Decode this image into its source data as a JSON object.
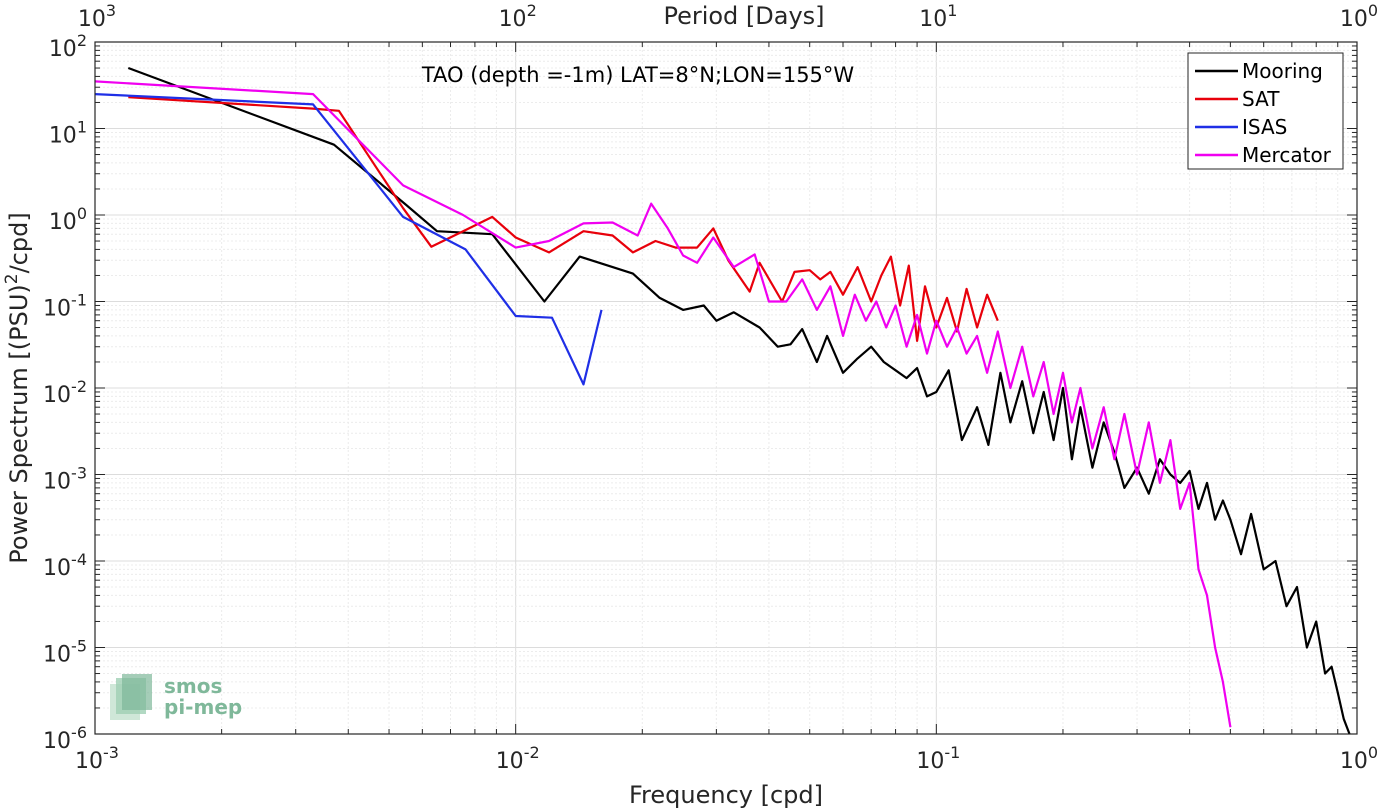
{
  "chart_data": {
    "type": "line",
    "title": "TAO (depth =-1m) LAT=8°N;LON=155°W",
    "xlabel": "Frequency [cpd]",
    "ylabel": "Power Spectrum [(PSU)^2/cpd]",
    "top_xlabel": "Period [Days]",
    "xscale": "log",
    "yscale": "log",
    "xlim": [
      0.001,
      1
    ],
    "ylim": [
      1e-06,
      100
    ],
    "grid": true,
    "legend_position": "top-right",
    "x_ticks": [
      {
        "base": "10",
        "exp": "-3",
        "value": 0.001
      },
      {
        "base": "10",
        "exp": "-2",
        "value": 0.01
      },
      {
        "base": "10",
        "exp": "-1",
        "value": 0.1
      },
      {
        "base": "10",
        "exp": "0",
        "value": 1
      }
    ],
    "top_ticks": [
      {
        "base": "10",
        "exp": "3",
        "value": 0.001
      },
      {
        "base": "10",
        "exp": "2",
        "value": 0.01
      },
      {
        "base": "10",
        "exp": "1",
        "value": 0.1
      },
      {
        "base": "10",
        "exp": "0",
        "value": 1
      }
    ],
    "y_ticks": [
      {
        "base": "10",
        "exp": "2",
        "value": 100
      },
      {
        "base": "10",
        "exp": "1",
        "value": 10
      },
      {
        "base": "10",
        "exp": "0",
        "value": 1
      },
      {
        "base": "10",
        "exp": "-1",
        "value": 0.1
      },
      {
        "base": "10",
        "exp": "-2",
        "value": 0.01
      },
      {
        "base": "10",
        "exp": "-3",
        "value": 0.001
      },
      {
        "base": "10",
        "exp": "-4",
        "value": 0.0001
      },
      {
        "base": "10",
        "exp": "-5",
        "value": 1e-05
      },
      {
        "base": "10",
        "exp": "-6",
        "value": 1e-06
      }
    ],
    "series": [
      {
        "name": "Mooring",
        "color": "#000000",
        "x": [
          0.0012,
          0.0037,
          0.0055,
          0.0065,
          0.0088,
          0.0117,
          0.0142,
          0.017,
          0.019,
          0.022,
          0.025,
          0.028,
          0.03,
          0.033,
          0.038,
          0.042,
          0.045,
          0.048,
          0.052,
          0.055,
          0.06,
          0.065,
          0.07,
          0.075,
          0.08,
          0.085,
          0.09,
          0.095,
          0.1,
          0.107,
          0.115,
          0.125,
          0.133,
          0.142,
          0.15,
          0.16,
          0.17,
          0.18,
          0.19,
          0.2,
          0.21,
          0.22,
          0.235,
          0.25,
          0.265,
          0.28,
          0.3,
          0.32,
          0.34,
          0.36,
          0.38,
          0.4,
          0.42,
          0.44,
          0.46,
          0.48,
          0.5,
          0.53,
          0.56,
          0.6,
          0.64,
          0.68,
          0.72,
          0.76,
          0.8,
          0.84,
          0.87,
          0.9,
          0.93,
          0.96
        ],
        "y": [
          50,
          6.5,
          1.3,
          0.65,
          0.6,
          0.1,
          0.33,
          0.25,
          0.21,
          0.11,
          0.08,
          0.09,
          0.06,
          0.075,
          0.05,
          0.03,
          0.032,
          0.048,
          0.02,
          0.04,
          0.015,
          0.022,
          0.03,
          0.02,
          0.016,
          0.013,
          0.017,
          0.008,
          0.009,
          0.016,
          0.0025,
          0.006,
          0.0022,
          0.015,
          0.004,
          0.012,
          0.003,
          0.009,
          0.0025,
          0.01,
          0.0015,
          0.006,
          0.0012,
          0.004,
          0.0018,
          0.0007,
          0.0012,
          0.0006,
          0.0015,
          0.001,
          0.0008,
          0.0011,
          0.0004,
          0.0008,
          0.0003,
          0.0005,
          0.0003,
          0.00012,
          0.00035,
          8e-05,
          0.0001,
          3e-05,
          5e-05,
          1e-05,
          2e-05,
          5e-06,
          6e-06,
          3e-06,
          1.5e-06,
          1e-06
        ]
      },
      {
        "name": "SAT",
        "color": "#e8000b",
        "x": [
          0.0012,
          0.0033,
          0.0038,
          0.0054,
          0.0063,
          0.0075,
          0.0088,
          0.01,
          0.012,
          0.0145,
          0.017,
          0.019,
          0.0215,
          0.024,
          0.027,
          0.0295,
          0.032,
          0.036,
          0.038,
          0.043,
          0.046,
          0.05,
          0.053,
          0.056,
          0.06,
          0.065,
          0.07,
          0.074,
          0.078,
          0.082,
          0.086,
          0.09,
          0.094,
          0.1,
          0.106,
          0.112,
          0.118,
          0.125,
          0.132,
          0.14
        ],
        "y": [
          23,
          17,
          16,
          1.2,
          0.43,
          0.65,
          0.95,
          0.55,
          0.37,
          0.65,
          0.58,
          0.37,
          0.5,
          0.42,
          0.42,
          0.7,
          0.3,
          0.13,
          0.28,
          0.1,
          0.22,
          0.23,
          0.18,
          0.22,
          0.12,
          0.25,
          0.1,
          0.2,
          0.33,
          0.09,
          0.26,
          0.035,
          0.15,
          0.05,
          0.11,
          0.045,
          0.14,
          0.05,
          0.12,
          0.06
        ]
      },
      {
        "name": "ISAS",
        "color": "#1f2fe6",
        "x": [
          0.001,
          0.0033,
          0.0054,
          0.0076,
          0.01,
          0.0122,
          0.0145,
          0.016
        ],
        "y": [
          25,
          19,
          0.95,
          0.4,
          0.068,
          0.065,
          0.011,
          0.08
        ]
      },
      {
        "name": "Mercator",
        "color": "#f000f0",
        "x": [
          0.001,
          0.0033,
          0.0054,
          0.0075,
          0.01,
          0.012,
          0.0145,
          0.017,
          0.0195,
          0.021,
          0.023,
          0.025,
          0.027,
          0.0295,
          0.033,
          0.037,
          0.04,
          0.044,
          0.048,
          0.052,
          0.056,
          0.06,
          0.064,
          0.068,
          0.072,
          0.076,
          0.08,
          0.085,
          0.09,
          0.095,
          0.1,
          0.106,
          0.112,
          0.118,
          0.125,
          0.132,
          0.14,
          0.15,
          0.16,
          0.17,
          0.18,
          0.19,
          0.2,
          0.21,
          0.22,
          0.235,
          0.25,
          0.265,
          0.28,
          0.3,
          0.32,
          0.34,
          0.36,
          0.38,
          0.4,
          0.42,
          0.44,
          0.46,
          0.48,
          0.5
        ],
        "y": [
          35,
          25,
          2.2,
          1.0,
          0.42,
          0.5,
          0.8,
          0.82,
          0.58,
          1.35,
          0.7,
          0.34,
          0.28,
          0.55,
          0.25,
          0.35,
          0.1,
          0.1,
          0.18,
          0.08,
          0.15,
          0.04,
          0.12,
          0.06,
          0.1,
          0.05,
          0.09,
          0.03,
          0.07,
          0.025,
          0.06,
          0.03,
          0.05,
          0.025,
          0.04,
          0.015,
          0.045,
          0.01,
          0.03,
          0.008,
          0.02,
          0.005,
          0.015,
          0.004,
          0.01,
          0.002,
          0.006,
          0.0015,
          0.005,
          0.001,
          0.004,
          0.0008,
          0.0025,
          0.0004,
          0.0008,
          8e-05,
          4e-05,
          1e-05,
          4e-06,
          1.2e-06
        ]
      }
    ]
  },
  "logo": {
    "line1": "smos",
    "line2": "pi-mep"
  }
}
